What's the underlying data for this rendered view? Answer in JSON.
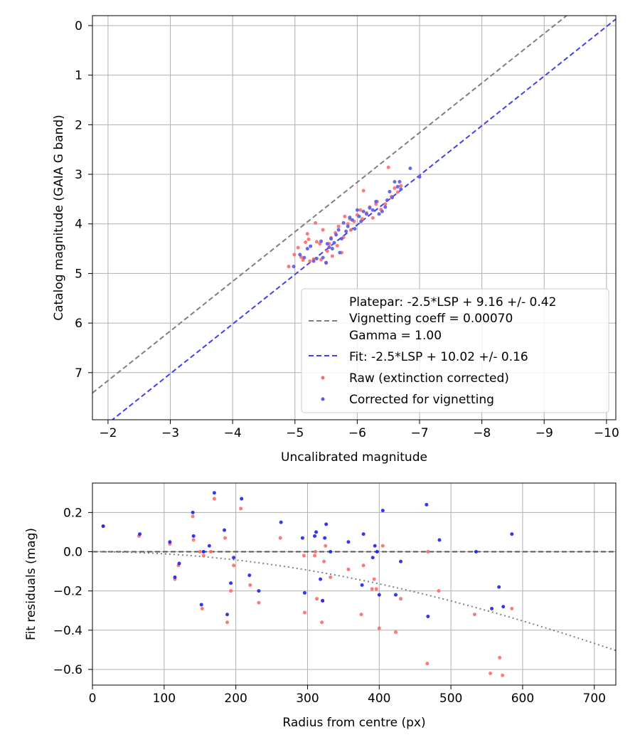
{
  "chart_data": [
    {
      "type": "scatter",
      "xlabel": "Uncalibrated magnitude",
      "ylabel": "Catalog magnitude (GAIA G band)",
      "xlim": [
        -1.75,
        -10.15
      ],
      "ylim": [
        7.95,
        -0.2
      ],
      "x_inverted": true,
      "y_inverted": true,
      "xticks": [
        -2,
        -3,
        -4,
        -5,
        -6,
        -7,
        -8,
        -9,
        -10
      ],
      "xtick_labels": [
        "−2",
        "−3",
        "−4",
        "−5",
        "−6",
        "−7",
        "−8",
        "−9",
        "−10"
      ],
      "yticks": [
        0,
        1,
        2,
        3,
        4,
        5,
        6,
        7
      ],
      "ytick_labels": [
        "0",
        "1",
        "2",
        "3",
        "4",
        "5",
        "6",
        "7"
      ],
      "grid": true,
      "legend_position": "lower-right",
      "legend": [
        {
          "label_lines": [
            "Platepar: -2.5*LSP + 9.16 +/- 0.42",
            "Vignetting coeff = 0.00070",
            "Gamma = 1.00"
          ],
          "style": "dashed",
          "color": "#808080"
        },
        {
          "label_lines": [
            "Fit: -2.5*LSP + 10.02 +/- 0.16"
          ],
          "style": "dashed",
          "color": "#4040ee"
        },
        {
          "label_lines": [
            "Raw (extinction corrected)"
          ],
          "style": "dot",
          "color": "#ff6a6a"
        },
        {
          "label_lines": [
            "Corrected for vignetting"
          ],
          "style": "dot",
          "color": "#5a5aee"
        }
      ],
      "lines": [
        {
          "slope": 1,
          "intercept": 9.16,
          "color": "#808080"
        },
        {
          "slope": 1,
          "intercept": 10.02,
          "color": "#4040ee"
        }
      ],
      "series": [
        {
          "color": "#ff6a6a",
          "points": [
            [
              -4.9,
              4.86
            ],
            [
              -4.99,
              4.62
            ],
            [
              -5.05,
              4.48
            ],
            [
              -5.1,
              4.67
            ],
            [
              -5.13,
              4.73
            ],
            [
              -5.17,
              4.37
            ],
            [
              -5.2,
              4.2
            ],
            [
              -5.22,
              4.31
            ],
            [
              -5.24,
              4.75
            ],
            [
              -5.3,
              4.71
            ],
            [
              -5.33,
              3.98
            ],
            [
              -5.35,
              4.36
            ],
            [
              -5.4,
              4.4
            ],
            [
              -5.42,
              4.72
            ],
            [
              -5.45,
              4.12
            ],
            [
              -5.5,
              4.79
            ],
            [
              -5.52,
              4.55
            ],
            [
              -5.55,
              4.4
            ],
            [
              -5.58,
              4.28
            ],
            [
              -5.6,
              4.65
            ],
            [
              -5.65,
              4.18
            ],
            [
              -5.68,
              4.44
            ],
            [
              -5.7,
              4.05
            ],
            [
              -5.75,
              4.58
            ],
            [
              -5.78,
              4.27
            ],
            [
              -5.8,
              3.85
            ],
            [
              -5.85,
              4.0
            ],
            [
              -5.88,
              3.9
            ],
            [
              -5.9,
              4.12
            ],
            [
              -5.95,
              3.95
            ],
            [
              -6.0,
              3.82
            ],
            [
              -6.05,
              3.72
            ],
            [
              -6.08,
              3.9
            ],
            [
              -6.1,
              3.33
            ],
            [
              -6.15,
              3.78
            ],
            [
              -6.2,
              3.66
            ],
            [
              -6.25,
              3.88
            ],
            [
              -6.3,
              3.6
            ],
            [
              -6.32,
              3.55
            ],
            [
              -6.38,
              3.71
            ],
            [
              -6.45,
              3.6
            ],
            [
              -6.5,
              2.86
            ],
            [
              -6.55,
              3.45
            ],
            [
              -6.6,
              3.28
            ],
            [
              -6.65,
              3.36
            ],
            [
              -6.7,
              3.23
            ],
            [
              -7.0,
              3.05
            ]
          ]
        },
        {
          "color": "#5a5aee",
          "points": [
            [
              -4.98,
              4.86
            ],
            [
              -5.08,
              4.62
            ],
            [
              -5.15,
              4.68
            ],
            [
              -5.2,
              4.5
            ],
            [
              -5.25,
              4.45
            ],
            [
              -5.3,
              4.75
            ],
            [
              -5.35,
              4.7
            ],
            [
              -5.42,
              4.35
            ],
            [
              -5.45,
              4.68
            ],
            [
              -5.5,
              4.78
            ],
            [
              -5.52,
              4.4
            ],
            [
              -5.55,
              4.47
            ],
            [
              -5.58,
              4.3
            ],
            [
              -5.6,
              4.5
            ],
            [
              -5.63,
              4.38
            ],
            [
              -5.66,
              4.22
            ],
            [
              -5.7,
              4.12
            ],
            [
              -5.72,
              4.58
            ],
            [
              -5.75,
              4.3
            ],
            [
              -5.78,
              3.98
            ],
            [
              -5.82,
              4.15
            ],
            [
              -5.85,
              4.05
            ],
            [
              -5.88,
              3.87
            ],
            [
              -5.92,
              3.92
            ],
            [
              -5.96,
              4.1
            ],
            [
              -6.0,
              3.72
            ],
            [
              -6.03,
              3.85
            ],
            [
              -6.06,
              3.95
            ],
            [
              -6.1,
              3.75
            ],
            [
              -6.15,
              3.8
            ],
            [
              -6.2,
              3.68
            ],
            [
              -6.25,
              3.72
            ],
            [
              -6.3,
              3.55
            ],
            [
              -6.35,
              3.8
            ],
            [
              -6.4,
              3.75
            ],
            [
              -6.45,
              3.66
            ],
            [
              -6.48,
              3.52
            ],
            [
              -6.52,
              3.35
            ],
            [
              -6.56,
              3.47
            ],
            [
              -6.6,
              3.15
            ],
            [
              -6.65,
              3.25
            ],
            [
              -6.68,
              3.15
            ],
            [
              -6.7,
              3.3
            ],
            [
              -6.85,
              2.88
            ],
            [
              -7.0,
              3.05
            ]
          ]
        }
      ]
    },
    {
      "type": "scatter",
      "xlabel": "Radius from centre (px)",
      "ylabel": "Fit residuals (mag)",
      "xlim": [
        0,
        730
      ],
      "ylim": [
        -0.68,
        0.35
      ],
      "xticks": [
        0,
        100,
        200,
        300,
        400,
        500,
        600,
        700
      ],
      "xtick_labels": [
        "0",
        "100",
        "200",
        "300",
        "400",
        "500",
        "600",
        "700"
      ],
      "yticks": [
        0.2,
        0.0,
        -0.2,
        -0.4,
        -0.6
      ],
      "ytick_labels": [
        "0.2",
        "0.0",
        "−0.2",
        "−0.4",
        "−0.6"
      ],
      "grid": true,
      "reference_line": {
        "y": 0.0,
        "style": "dashed",
        "color": "#555555"
      },
      "vignetting_curve": {
        "coeff": 0.0007,
        "style": "dotted",
        "color": "#808080"
      },
      "series": [
        {
          "color": "#ff6a6a",
          "points": [
            [
              15,
              0.13
            ],
            [
              65,
              0.08
            ],
            [
              108,
              0.04
            ],
            [
              115,
              -0.14
            ],
            [
              120,
              -0.07
            ],
            [
              140,
              0.18
            ],
            [
              141,
              0.06
            ],
            [
              150,
              0.0
            ],
            [
              153,
              -0.29
            ],
            [
              155,
              -0.02
            ],
            [
              165,
              0.0
            ],
            [
              170,
              0.27
            ],
            [
              185,
              0.07
            ],
            [
              188,
              -0.36
            ],
            [
              193,
              -0.2
            ],
            [
              197,
              -0.07
            ],
            [
              207,
              0.22
            ],
            [
              220,
              -0.17
            ],
            [
              232,
              -0.26
            ],
            [
              262,
              0.07
            ],
            [
              295,
              -0.02
            ],
            [
              296,
              -0.31
            ],
            [
              310,
              -0.02
            ],
            [
              311,
              0.0
            ],
            [
              313,
              -0.24
            ],
            [
              320,
              -0.36
            ],
            [
              321,
              -0.25
            ],
            [
              323,
              -0.05
            ],
            [
              325,
              0.03
            ],
            [
              332,
              -0.13
            ],
            [
              357,
              -0.09
            ],
            [
              375,
              -0.32
            ],
            [
              378,
              -0.07
            ],
            [
              390,
              -0.19
            ],
            [
              393,
              -0.14
            ],
            [
              396,
              -0.19
            ],
            [
              400,
              -0.39
            ],
            [
              405,
              0.03
            ],
            [
              423,
              -0.41
            ],
            [
              430,
              -0.24
            ],
            [
              467,
              -0.57
            ],
            [
              468,
              0.0
            ],
            [
              483,
              -0.2
            ],
            [
              533,
              -0.32
            ],
            [
              555,
              -0.62
            ],
            [
              568,
              -0.54
            ],
            [
              572,
              -0.63
            ],
            [
              585,
              -0.29
            ]
          ]
        },
        {
          "color": "#2020ee",
          "points": [
            [
              15,
              0.13
            ],
            [
              66,
              0.09
            ],
            [
              108,
              0.05
            ],
            [
              115,
              -0.13
            ],
            [
              121,
              -0.06
            ],
            [
              140,
              0.2
            ],
            [
              141,
              0.08
            ],
            [
              152,
              -0.27
            ],
            [
              155,
              0.0
            ],
            [
              163,
              0.03
            ],
            [
              170,
              0.3
            ],
            [
              184,
              0.11
            ],
            [
              188,
              -0.32
            ],
            [
              193,
              -0.16
            ],
            [
              197,
              -0.03
            ],
            [
              208,
              0.27
            ],
            [
              219,
              -0.12
            ],
            [
              232,
              -0.2
            ],
            [
              263,
              0.15
            ],
            [
              293,
              0.07
            ],
            [
              296,
              -0.21
            ],
            [
              310,
              0.08
            ],
            [
              312,
              0.1
            ],
            [
              318,
              -0.14
            ],
            [
              321,
              -0.25
            ],
            [
              324,
              0.07
            ],
            [
              326,
              0.14
            ],
            [
              332,
              0.0
            ],
            [
              357,
              0.05
            ],
            [
              376,
              -0.17
            ],
            [
              378,
              0.09
            ],
            [
              391,
              -0.03
            ],
            [
              394,
              0.03
            ],
            [
              397,
              0.0
            ],
            [
              400,
              -0.22
            ],
            [
              405,
              0.21
            ],
            [
              423,
              -0.22
            ],
            [
              430,
              -0.05
            ],
            [
              466,
              0.24
            ],
            [
              468,
              -0.33
            ],
            [
              484,
              0.06
            ],
            [
              535,
              0.0
            ],
            [
              557,
              -0.29
            ],
            [
              567,
              -0.18
            ],
            [
              573,
              -0.28
            ],
            [
              585,
              0.09
            ]
          ]
        }
      ]
    }
  ]
}
